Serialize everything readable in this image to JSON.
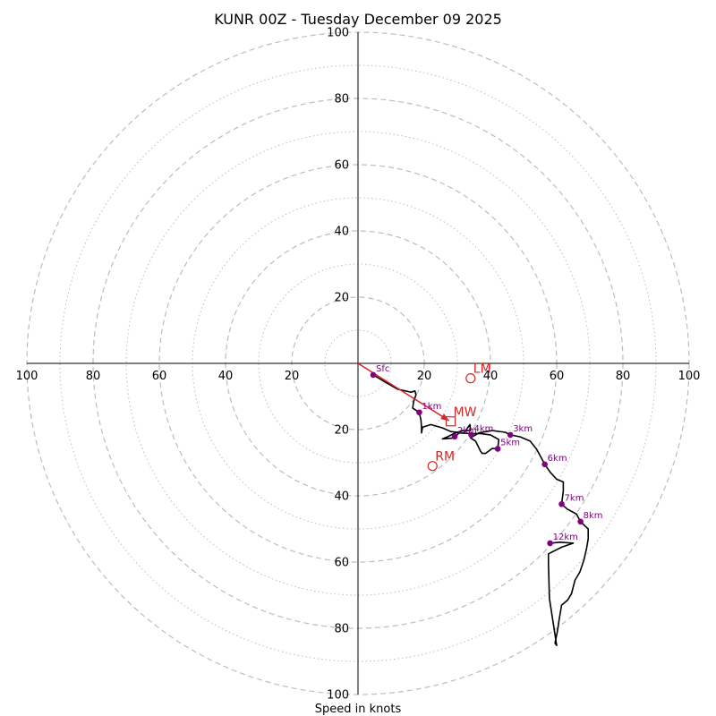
{
  "chart_data": {
    "type": "hodograph",
    "title": "KUNR 00Z - Tuesday December 09 2025",
    "xlabel": "Speed in knots",
    "max_speed": 100,
    "major_rings": [
      20,
      40,
      60,
      80,
      100
    ],
    "minor_rings": [
      10,
      30,
      50,
      70,
      90
    ],
    "axis_ticks": [
      20,
      40,
      60,
      80,
      100
    ],
    "colors": {
      "ring": "#bdbdbd",
      "trace": "#000000",
      "points": "#800080",
      "motion": "#d62728",
      "axis": "#000000"
    },
    "trace": [
      [
        4.5,
        -3.4
      ],
      [
        8,
        -5.5
      ],
      [
        12,
        -7.8
      ],
      [
        16,
        -8.7
      ],
      [
        17.2,
        -8.3
      ],
      [
        17.5,
        -9.5
      ],
      [
        16.8,
        -11.5
      ],
      [
        16.5,
        -13.5
      ],
      [
        18.5,
        -14.8
      ],
      [
        19,
        -17
      ],
      [
        19.2,
        -19.5
      ],
      [
        19.2,
        -21
      ],
      [
        19.5,
        -19.3
      ],
      [
        22,
        -18.5
      ],
      [
        25.5,
        -19.5
      ],
      [
        28,
        -20.6
      ],
      [
        32,
        -21
      ],
      [
        33.8,
        -18.5
      ],
      [
        34,
        -20.3
      ],
      [
        31.5,
        -20.3
      ],
      [
        29,
        -21.2
      ],
      [
        27,
        -22.2
      ],
      [
        25.5,
        -22.8
      ],
      [
        29,
        -22.5
      ],
      [
        30.5,
        -21
      ],
      [
        34,
        -21.2
      ],
      [
        37,
        -21.2
      ],
      [
        40,
        -21.6
      ],
      [
        42.5,
        -23
      ],
      [
        42.2,
        -25.8
      ],
      [
        40.5,
        -25.7
      ],
      [
        38.5,
        -27.2
      ],
      [
        37.5,
        -27.2
      ],
      [
        37,
        -26.5
      ],
      [
        35.5,
        -23.5
      ],
      [
        34,
        -22.5
      ],
      [
        36.5,
        -21
      ],
      [
        40.5,
        -20.3
      ],
      [
        44.5,
        -20.8
      ],
      [
        46,
        -21.6
      ],
      [
        49,
        -22.2
      ],
      [
        52,
        -23.5
      ],
      [
        54,
        -26
      ],
      [
        56.4,
        -30.5
      ],
      [
        58,
        -32.8
      ],
      [
        60,
        -35
      ],
      [
        62,
        -35.8
      ],
      [
        62,
        -38.5
      ],
      [
        61.5,
        -42.5
      ],
      [
        63.2,
        -44
      ],
      [
        66,
        -45.5
      ],
      [
        67.2,
        -47.8
      ],
      [
        69.5,
        -50
      ],
      [
        69.5,
        -53
      ],
      [
        69,
        -56
      ],
      [
        68.2,
        -59.5
      ],
      [
        67,
        -63
      ],
      [
        65.5,
        -65.5
      ],
      [
        64.5,
        -69.5
      ],
      [
        63.3,
        -71.5
      ],
      [
        61.5,
        -73
      ],
      [
        60.8,
        -77
      ],
      [
        60.2,
        -81
      ],
      [
        59.5,
        -84.5
      ],
      [
        60,
        -85.2
      ],
      [
        59.8,
        -84
      ],
      [
        57.8,
        -71
      ],
      [
        57.5,
        -60.5
      ],
      [
        57.5,
        -57.5
      ],
      [
        61.5,
        -55.5
      ],
      [
        65,
        -54.3
      ],
      [
        61,
        -54
      ],
      [
        58,
        -54.3
      ],
      [
        57.5,
        -54.5
      ]
    ],
    "points": [
      {
        "label": "Sfc",
        "u": 4.6,
        "v": -3.5
      },
      {
        "label": "1km",
        "u": 18.5,
        "v": -14.8
      },
      {
        "label": "2km",
        "u": 29.2,
        "v": -22.1
      },
      {
        "label": "3km",
        "u": 46,
        "v": -21.6
      },
      {
        "label": "4km",
        "u": 34.2,
        "v": -21.6
      },
      {
        "label": "5km",
        "u": 42.2,
        "v": -25.8
      },
      {
        "label": "6km",
        "u": 56.4,
        "v": -30.5
      },
      {
        "label": "7km",
        "u": 61.5,
        "v": -42.5
      },
      {
        "label": "8km",
        "u": 67.2,
        "v": -47.8
      },
      {
        "label": "12km",
        "u": 58,
        "v": -54.3
      }
    ],
    "storm_motion": [
      {
        "label": "LM",
        "u": 34,
        "v": -4.5,
        "marker": "circle"
      },
      {
        "label": "MW",
        "u": 28,
        "v": -17.5,
        "marker": "square"
      },
      {
        "label": "RM",
        "u": 22.5,
        "v": -31,
        "marker": "circle"
      }
    ],
    "shear_arrow": {
      "from": [
        0,
        0
      ],
      "to": [
        27.5,
        -17.3
      ]
    }
  }
}
